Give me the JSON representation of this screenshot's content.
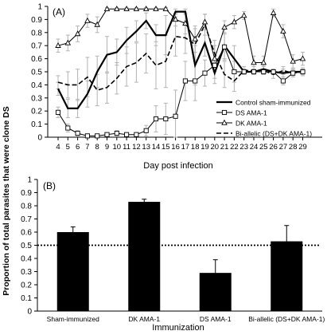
{
  "figure": {
    "ylabel": "Proportion of total parasites that were  clone DS"
  },
  "chart_data": [
    {
      "type": "line",
      "panel_label": "(A)",
      "xlabel": "Day post infection",
      "x": [
        4,
        5,
        6,
        7,
        8,
        9,
        10,
        11,
        12,
        13,
        14,
        15,
        16,
        17,
        18,
        19,
        20,
        21,
        22,
        23,
        24,
        25,
        26,
        27,
        28,
        29
      ],
      "ylim": [
        0,
        1
      ],
      "yticks": [
        "0",
        "0.1",
        "0.2",
        "0.3",
        "0.4",
        "0.5",
        "0.6",
        "0.7",
        "0.8",
        "0.9",
        "1"
      ],
      "series": [
        {
          "name": "Control sham-immunized",
          "style": "solid-thick",
          "values": [
            0.37,
            0.22,
            0.22,
            0.33,
            0.5,
            0.63,
            0.65,
            0.74,
            0.81,
            0.89,
            0.78,
            0.78,
            0.96,
            0.96,
            0.55,
            0.72,
            0.49,
            0.7,
            0.6,
            0.5,
            0.5,
            0.52,
            0.5,
            0.49,
            0.5,
            0.5
          ],
          "error": [
            0.05,
            0.07,
            0.07,
            0.1,
            0.12,
            0.14,
            0.1,
            0.1,
            0.08,
            0.06,
            0.08,
            0.15,
            0.02,
            0.02,
            0.15,
            0.1,
            0.08,
            0.1,
            0.1,
            0.02,
            0.02,
            0.03,
            0.02,
            0.03,
            0.02,
            0.02
          ]
        },
        {
          "name": "DS AMA-1",
          "style": "square",
          "values": [
            0.19,
            0.07,
            0.03,
            0.01,
            0.01,
            0.02,
            0.03,
            0.02,
            0.02,
            0.05,
            0.14,
            0.14,
            0.16,
            0.43,
            0.43,
            0.49,
            0.55,
            0.69,
            0.5,
            0.5,
            0.5,
            0.5,
            0.5,
            0.43,
            0.49,
            0.5
          ],
          "error": [
            0.04,
            0.03,
            0.02,
            0.01,
            0.01,
            0.01,
            0.02,
            0.01,
            0.01,
            0.04,
            0.1,
            0.12,
            0.2,
            0.15,
            0.15,
            0.1,
            0.1,
            0.1,
            0.08,
            0.02,
            0.02,
            0.02,
            0.02,
            0.03,
            0.02,
            0.02
          ]
        },
        {
          "name": "DK AMA-1",
          "style": "triangle",
          "values": [
            0.7,
            0.72,
            0.79,
            0.89,
            0.86,
            0.98,
            0.98,
            0.98,
            0.98,
            0.98,
            0.98,
            0.98,
            0.9,
            0.87,
            0.75,
            0.88,
            0.6,
            0.84,
            0.88,
            0.93,
            0.57,
            0.57,
            0.95,
            0.81,
            0.58,
            0.6
          ],
          "error": [
            0.05,
            0.06,
            0.06,
            0.05,
            0.06,
            0.01,
            0.01,
            0.01,
            0.01,
            0.01,
            0.01,
            0.01,
            0.05,
            0.08,
            0.1,
            0.06,
            0.1,
            0.05,
            0.05,
            0.03,
            0.05,
            0.05,
            0.03,
            0.05,
            0.05,
            0.05
          ]
        },
        {
          "name": "Bi-allelic (DS+DK AMA-1)",
          "style": "dashed",
          "values": [
            0.42,
            0.4,
            0.4,
            0.46,
            0.36,
            0.38,
            0.45,
            0.54,
            0.57,
            0.64,
            0.55,
            0.58,
            0.77,
            0.76,
            0.71,
            0.86,
            0.64,
            0.48,
            0.43,
            0.51,
            0.51,
            0.51,
            0.48,
            0.51,
            0.49,
            0.5
          ],
          "error": [
            0.05,
            0.1,
            0.12,
            0.15,
            0.12,
            0.12,
            0.12,
            0.15,
            0.15,
            0.15,
            0.18,
            0.2,
            0.15,
            0.12,
            0.12,
            0.08,
            0.1,
            0.1,
            0.08,
            0.03,
            0.03,
            0.03,
            0.03,
            0.03,
            0.03,
            0.03
          ]
        }
      ]
    },
    {
      "type": "bar",
      "panel_label": "(B)",
      "xlabel": "Immunization",
      "categories": [
        "Sham-immunized",
        "DK AMA-1",
        "DS AMA-1",
        "Bi-allelic (DS+DK  AMA-1)"
      ],
      "values": [
        0.6,
        0.83,
        0.29,
        0.53
      ],
      "error": [
        0.04,
        0.02,
        0.1,
        0.12
      ],
      "reference_line": 0.5,
      "ylim": [
        0,
        1
      ],
      "yticks": [
        "0",
        "0.1",
        "0.2",
        "0.3",
        "0.4",
        "0.5",
        "0.6",
        "0.7",
        "0.8",
        "0.9",
        "1"
      ]
    }
  ]
}
